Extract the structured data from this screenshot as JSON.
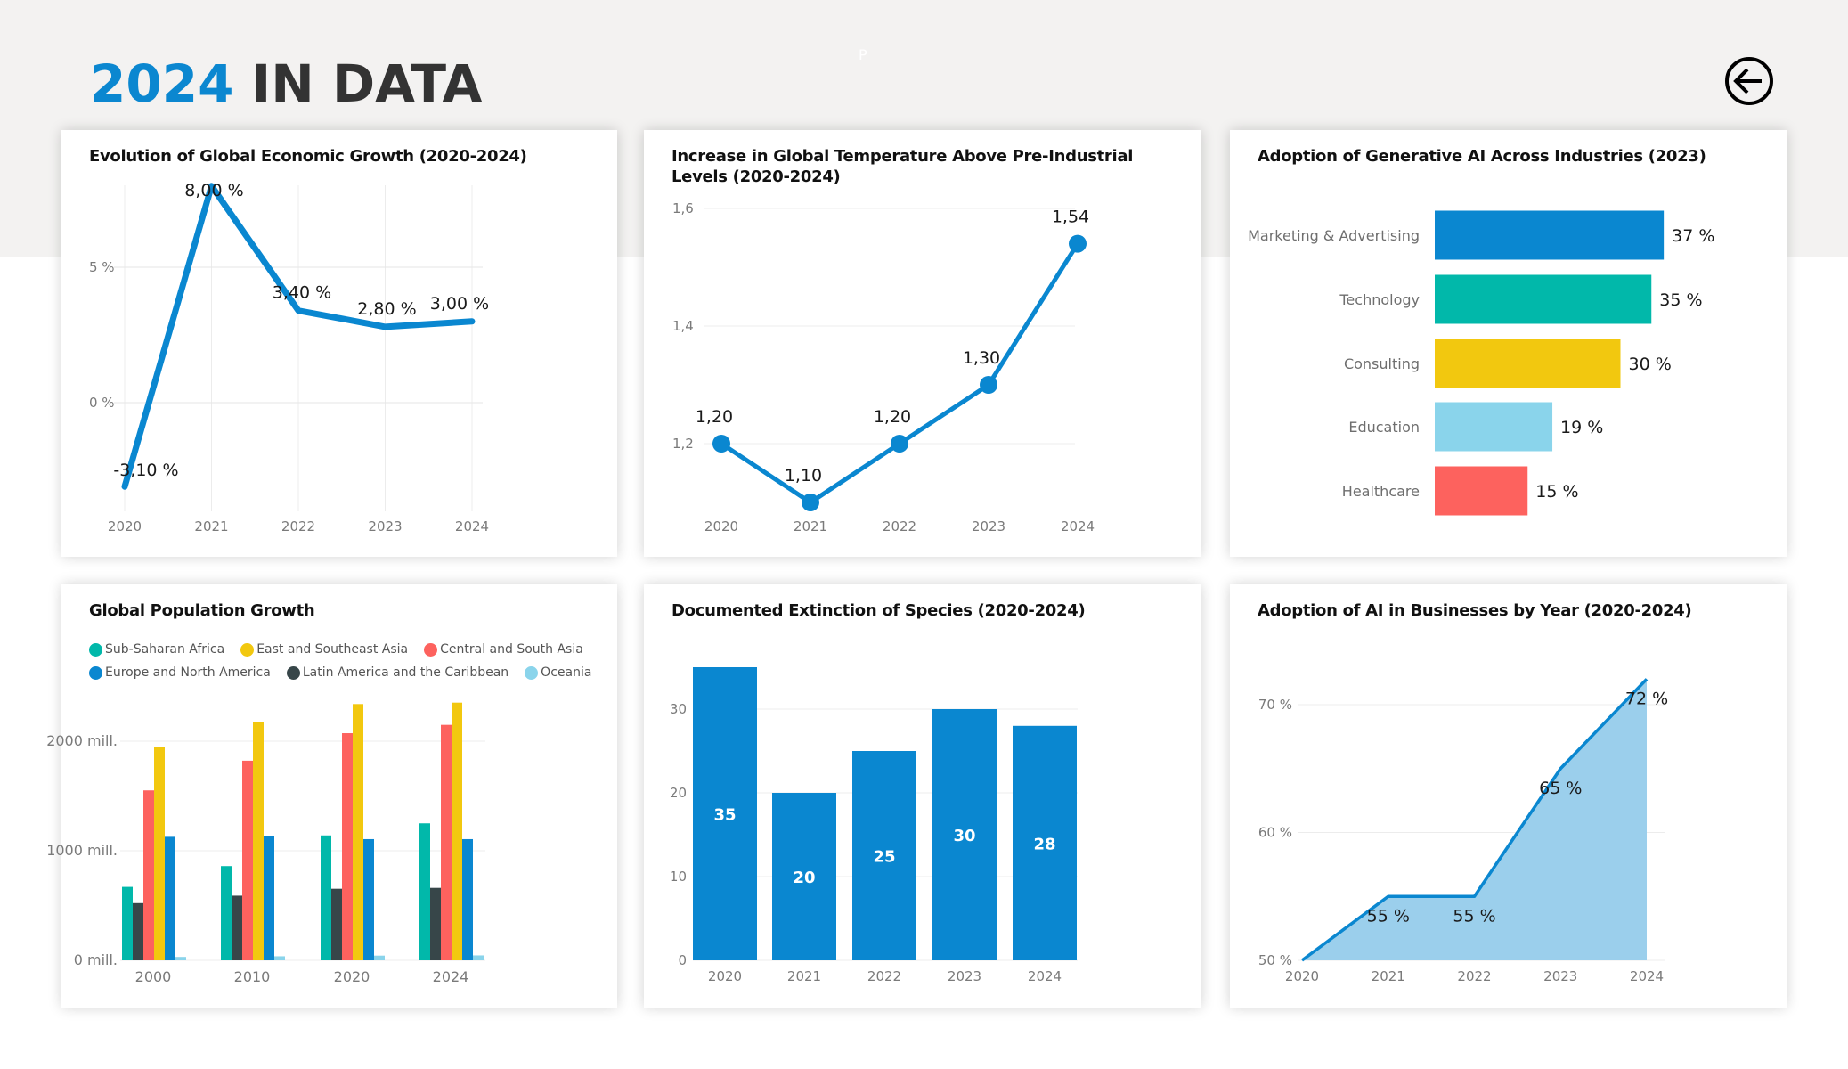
{
  "header": {
    "title_accent": "2024",
    "title_rest": " IN DATA",
    "watermark": "P",
    "back_button_icon": "arrow-left-circle-icon"
  },
  "colors": {
    "accent": "#0b87d0",
    "title_dark": "#333333",
    "header_bg": "#f3f2f1",
    "teal": "#01b8aa",
    "dark": "#374649",
    "red": "#fd625e",
    "yellow": "#f2c80f",
    "blue": "#0a87d0",
    "lightblue": "#8ad4eb",
    "area_fill": "#9bcfec"
  },
  "chart_data": [
    {
      "id": "economic-growth",
      "type": "line",
      "title": "Evolution of Global Economic Growth (2020-2024)",
      "x": [
        "2020",
        "2021",
        "2022",
        "2023",
        "2024"
      ],
      "values": [
        -3.1,
        8.0,
        3.4,
        2.8,
        3.0
      ],
      "data_labels": [
        "-3,10 %",
        "8,00 %",
        "3,40 %",
        "2,80 %",
        "3,00 %"
      ],
      "yticks": [
        0,
        5
      ],
      "ytick_labels": [
        "0 %",
        "5 %"
      ],
      "ylim": [
        -3.1,
        8.0
      ],
      "xlabel": "",
      "ylabel": "",
      "grid": true,
      "color": "#0a87d0"
    },
    {
      "id": "global-temperature",
      "type": "line",
      "title": "Increase in Global Temperature Above Pre-Industrial Levels (2020-2024)",
      "x": [
        "2020",
        "2021",
        "2022",
        "2023",
        "2024"
      ],
      "values": [
        1.2,
        1.1,
        1.2,
        1.3,
        1.54
      ],
      "data_labels": [
        "1,20",
        "1,10",
        "1,20",
        "1,30",
        "1,54"
      ],
      "yticks": [
        1.2,
        1.4,
        1.6
      ],
      "ytick_labels": [
        "1,2",
        "1,4",
        "1,6"
      ],
      "ylim": [
        1.1,
        1.6
      ],
      "markers": true,
      "grid": true,
      "color": "#0a87d0"
    },
    {
      "id": "generative-ai-industries",
      "type": "bar",
      "orientation": "horizontal",
      "title": "Adoption of Generative AI Across Industries (2023)",
      "categories": [
        "Marketing & Advertising",
        "Technology",
        "Consulting",
        "Education",
        "Healthcare"
      ],
      "values": [
        37,
        35,
        30,
        19,
        15
      ],
      "data_labels": [
        "37 %",
        "35 %",
        "30 %",
        "19 %",
        "15 %"
      ],
      "colors": [
        "#0a87d0",
        "#01b8aa",
        "#f2c80f",
        "#8ad4eb",
        "#fd625e"
      ],
      "unit": "%"
    },
    {
      "id": "population-growth",
      "type": "bar",
      "title": "Global Population Growth",
      "categories": [
        "2000",
        "2010",
        "2020",
        "2024"
      ],
      "series": [
        {
          "name": "Sub-Saharan Africa",
          "color": "#01b8aa",
          "values": [
            670,
            860,
            1140,
            1250
          ]
        },
        {
          "name": "Latin America and the Caribbean",
          "color": "#374649",
          "values": [
            522,
            590,
            653,
            661
          ]
        },
        {
          "name": "Central and South Asia",
          "color": "#fd625e",
          "values": [
            1551,
            1822,
            2073,
            2149
          ]
        },
        {
          "name": "East and Southeast Asia",
          "color": "#f2c80f",
          "values": [
            1944,
            2173,
            2339,
            2352
          ]
        },
        {
          "name": "Europe and North America",
          "color": "#0a87d0",
          "values": [
            1127,
            1134,
            1106,
            1106
          ]
        },
        {
          "name": "Oceania",
          "color": "#8ad4eb",
          "values": [
            31,
            37,
            43,
            45
          ]
        }
      ],
      "legend_order": [
        [
          "Sub-Saharan Africa",
          "East and Southeast Asia",
          "Central and South Asia"
        ],
        [
          "Europe and North America",
          "Latin America and the Caribbean",
          "Oceania"
        ]
      ],
      "legend_position": "top-left",
      "yticks": [
        0,
        1000,
        2000
      ],
      "ytick_labels": [
        "0 mill.",
        "1000 mill.",
        "2000 mill."
      ],
      "ylim": [
        0,
        2400
      ],
      "grid": true
    },
    {
      "id": "species-extinction",
      "type": "bar",
      "title": "Documented Extinction of Species (2020-2024)",
      "categories": [
        "2020",
        "2021",
        "2022",
        "2023",
        "2024"
      ],
      "values": [
        35,
        20,
        25,
        30,
        28
      ],
      "data_labels": [
        "35",
        "20",
        "25",
        "30",
        "28"
      ],
      "yticks": [
        0,
        10,
        20,
        30
      ],
      "ytick_labels": [
        "0",
        "10",
        "20",
        "30"
      ],
      "ylim": [
        0,
        35
      ],
      "grid": true,
      "color": "#0a87d0"
    },
    {
      "id": "ai-business-adoption",
      "type": "area",
      "title": "Adoption of AI in Businesses by Year (2020-2024)",
      "x": [
        "2020",
        "2021",
        "2022",
        "2023",
        "2024"
      ],
      "values": [
        50,
        55,
        55,
        65,
        72
      ],
      "data_labels": [
        "",
        "55 %",
        "55 %",
        "65 %",
        "72 %"
      ],
      "yticks": [
        50,
        60,
        70
      ],
      "ytick_labels": [
        "50 %",
        "60 %",
        "70 %"
      ],
      "ylim": [
        50,
        72
      ],
      "grid": true,
      "color": "#0a87d0",
      "fill": "#9bcfec"
    }
  ]
}
